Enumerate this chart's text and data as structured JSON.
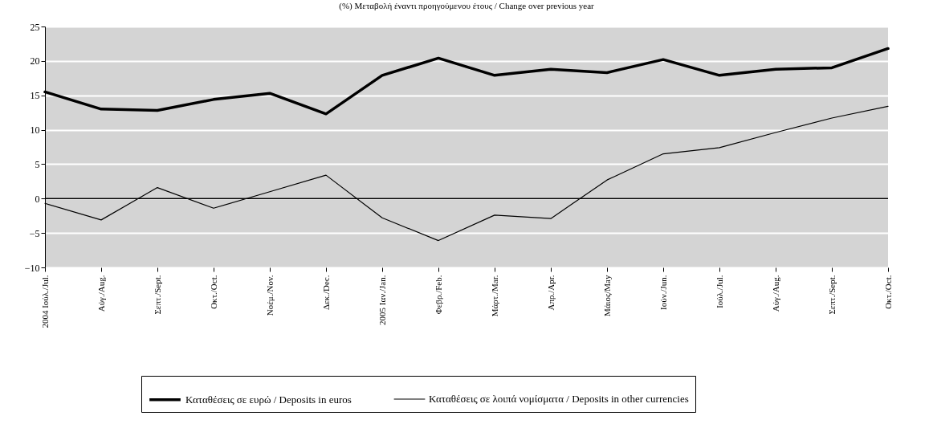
{
  "chart_data": {
    "type": "line",
    "title": "(%) Μεταβολή έναντι προηγούμενου έτους / Change over previous year",
    "categories": [
      "2004 Ιούλ./Jul.",
      "Αύγ./Aug.",
      "Σεπτ./Sept.",
      "Οκτ./Oct.",
      "Νοέμ./Nov.",
      "Δεκ./Dec.",
      "2005 Ιαν./Jan.",
      "Φεβρ./Feb.",
      "Μάρτ./Mar.",
      "Απρ./Apr.",
      "Μάιος/May",
      "Ιούν./Jun.",
      "Ιούλ./Jul.",
      "Αύγ./Aug.",
      "Σεπτ./Sept.",
      "Οκτ./Oct."
    ],
    "series": [
      {
        "name": "Καταθέσεις σε ευρώ / Deposits in euros",
        "color": "#000000",
        "values": [
          15.5,
          13,
          12.8,
          14.4,
          15.3,
          12.3,
          17.9,
          20.4,
          17.9,
          18.8,
          18.3,
          20.2,
          17.9,
          18.8,
          19.0,
          21.8
        ]
      },
      {
        "name": "Καταθέσεις σε λοιπά νομίσματα / Deposits in other currencies",
        "color": "#000000",
        "values": [
          -0.7,
          -3.1,
          1.6,
          -1.4,
          1.0,
          3.4,
          -2.8,
          -6.1,
          -2.4,
          -2.9,
          2.7,
          6.5,
          7.4,
          9.6,
          11.7,
          13.4
        ]
      }
    ],
    "ylim": [
      -10,
      25
    ],
    "yticks": [
      -10,
      -5,
      0,
      5,
      10,
      15,
      20,
      25
    ],
    "grid": "y",
    "legend": "bottom",
    "ref_lines": [
      {
        "axis": "y",
        "value": 0
      }
    ]
  }
}
